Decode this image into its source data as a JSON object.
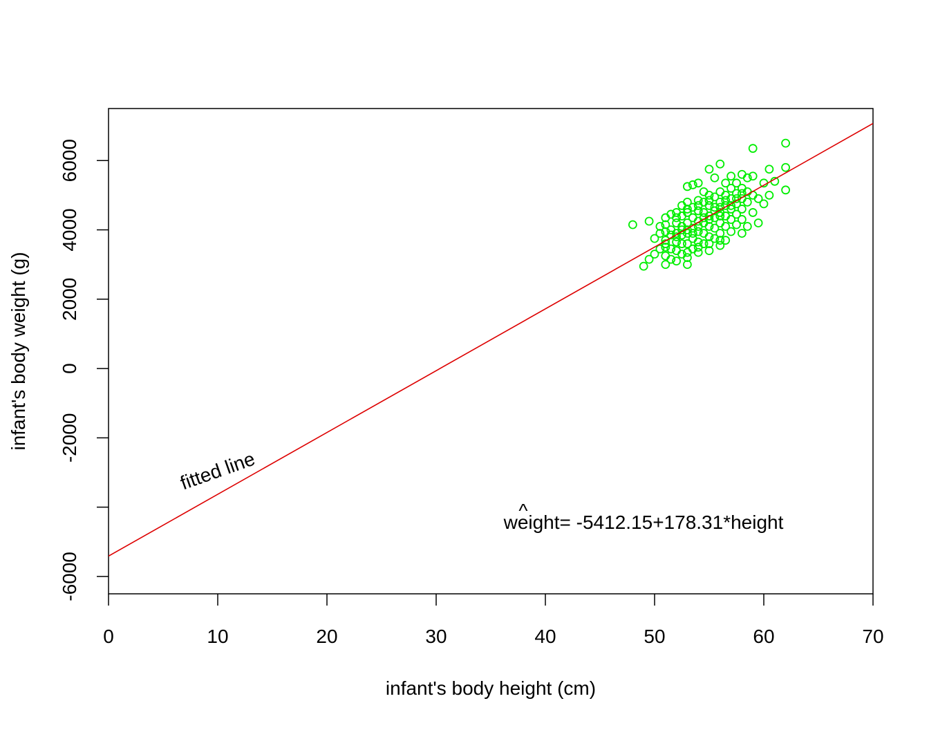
{
  "chart_data": {
    "type": "scatter",
    "title": "",
    "xlabel": "infant's body height (cm)",
    "ylabel": "infant's body weight (g)",
    "xlim": [
      0,
      70
    ],
    "ylim": [
      -6500,
      7500
    ],
    "x_ticks": [
      0,
      10,
      20,
      30,
      40,
      50,
      60,
      70
    ],
    "x_tick_labels": [
      "0",
      "10",
      "20",
      "30",
      "40",
      "50",
      "60",
      "70"
    ],
    "y_ticks": [
      -6000,
      -4000,
      -2000,
      0,
      2000,
      4000,
      6000
    ],
    "y_tick_labels": [
      "-6000",
      "",
      "-2000",
      "0",
      "2000",
      "4000",
      "6000"
    ],
    "grid": false,
    "point_color": "#00ee00",
    "line_color": "#dd0000",
    "fitted_line": {
      "intercept": -5412.15,
      "slope": 178.31
    },
    "annotations": {
      "fitted_line_label": "fitted line",
      "equation_hat": "^",
      "equation": "weight= -5412.15+178.31*height"
    },
    "points": [
      [
        48.0,
        4150
      ],
      [
        49.0,
        2950
      ],
      [
        49.5,
        3150
      ],
      [
        49.5,
        4250
      ],
      [
        50.0,
        3750
      ],
      [
        50.0,
        3300
      ],
      [
        50.5,
        3450
      ],
      [
        50.5,
        3900
      ],
      [
        50.5,
        4100
      ],
      [
        51.0,
        3000
      ],
      [
        51.0,
        3250
      ],
      [
        51.0,
        3500
      ],
      [
        51.0,
        3700
      ],
      [
        51.0,
        3950
      ],
      [
        51.0,
        4150
      ],
      [
        51.0,
        4350
      ],
      [
        51.5,
        3150
      ],
      [
        51.5,
        3450
      ],
      [
        51.5,
        3850
      ],
      [
        51.5,
        4450
      ],
      [
        52.0,
        3100
      ],
      [
        52.0,
        3400
      ],
      [
        52.0,
        3650
      ],
      [
        52.0,
        3900
      ],
      [
        52.0,
        4200
      ],
      [
        52.0,
        4500
      ],
      [
        52.5,
        3300
      ],
      [
        52.5,
        3600
      ],
      [
        52.5,
        3850
      ],
      [
        52.5,
        4100
      ],
      [
        52.5,
        4400
      ],
      [
        52.5,
        4700
      ],
      [
        53.0,
        3000
      ],
      [
        53.0,
        3350
      ],
      [
        53.0,
        3600
      ],
      [
        53.0,
        3900
      ],
      [
        53.0,
        4200
      ],
      [
        53.0,
        4500
      ],
      [
        53.0,
        4800
      ],
      [
        53.0,
        5250
      ],
      [
        53.5,
        3450
      ],
      [
        53.5,
        3750
      ],
      [
        53.5,
        4050
      ],
      [
        53.5,
        4350
      ],
      [
        53.5,
        4650
      ],
      [
        53.5,
        5300
      ],
      [
        54.0,
        3350
      ],
      [
        54.0,
        3650
      ],
      [
        54.0,
        3950
      ],
      [
        54.0,
        4250
      ],
      [
        54.0,
        4550
      ],
      [
        54.0,
        4850
      ],
      [
        54.0,
        5350
      ],
      [
        54.5,
        3600
      ],
      [
        54.5,
        3900
      ],
      [
        54.5,
        4200
      ],
      [
        54.5,
        4500
      ],
      [
        54.5,
        4800
      ],
      [
        54.5,
        5100
      ],
      [
        55.0,
        3400
      ],
      [
        55.0,
        3800
      ],
      [
        55.0,
        4100
      ],
      [
        55.0,
        4400
      ],
      [
        55.0,
        4700
      ],
      [
        55.0,
        5000
      ],
      [
        55.0,
        5750
      ],
      [
        55.5,
        3750
      ],
      [
        55.5,
        4050
      ],
      [
        55.5,
        4350
      ],
      [
        55.5,
        4650
      ],
      [
        55.5,
        4950
      ],
      [
        55.5,
        5500
      ],
      [
        56.0,
        3550
      ],
      [
        56.0,
        3900
      ],
      [
        56.0,
        4200
      ],
      [
        56.0,
        4500
      ],
      [
        56.0,
        4800
      ],
      [
        56.0,
        5100
      ],
      [
        56.0,
        5900
      ],
      [
        56.5,
        3700
      ],
      [
        56.5,
        4100
      ],
      [
        56.5,
        4400
      ],
      [
        56.5,
        4700
      ],
      [
        56.5,
        5000
      ],
      [
        56.5,
        5350
      ],
      [
        57.0,
        3950
      ],
      [
        57.0,
        4300
      ],
      [
        57.0,
        4600
      ],
      [
        57.0,
        4900
      ],
      [
        57.0,
        5200
      ],
      [
        57.0,
        5550
      ],
      [
        57.5,
        4150
      ],
      [
        57.5,
        4450
      ],
      [
        57.5,
        4750
      ],
      [
        57.5,
        5050
      ],
      [
        57.5,
        5350
      ],
      [
        58.0,
        3900
      ],
      [
        58.0,
        4300
      ],
      [
        58.0,
        4600
      ],
      [
        58.0,
        4900
      ],
      [
        58.0,
        5200
      ],
      [
        58.0,
        5600
      ],
      [
        58.5,
        4100
      ],
      [
        58.5,
        4800
      ],
      [
        58.5,
        5100
      ],
      [
        58.5,
        5500
      ],
      [
        59.0,
        4500
      ],
      [
        59.0,
        5000
      ],
      [
        59.0,
        5550
      ],
      [
        59.0,
        6350
      ],
      [
        59.5,
        4200
      ],
      [
        59.5,
        4900
      ],
      [
        60.0,
        4750
      ],
      [
        60.0,
        5350
      ],
      [
        60.5,
        5000
      ],
      [
        60.5,
        5750
      ],
      [
        61.0,
        5400
      ],
      [
        62.0,
        5150
      ],
      [
        62.0,
        5800
      ],
      [
        62.0,
        6500
      ],
      [
        53.0,
        4000
      ],
      [
        54.0,
        4100
      ],
      [
        55.0,
        4300
      ],
      [
        56.0,
        4400
      ],
      [
        57.0,
        4700
      ],
      [
        52.0,
        3800
      ],
      [
        53.5,
        3900
      ],
      [
        54.5,
        4350
      ],
      [
        55.5,
        4550
      ],
      [
        56.5,
        4850
      ],
      [
        51.0,
        3600
      ],
      [
        52.5,
        4000
      ],
      [
        53.0,
        4600
      ],
      [
        54.0,
        4700
      ],
      [
        55.0,
        4850
      ],
      [
        57.5,
        4900
      ],
      [
        58.0,
        5050
      ],
      [
        56.0,
        4650
      ],
      [
        51.5,
        4000
      ],
      [
        52.0,
        4350
      ],
      [
        55.0,
        3600
      ],
      [
        56.0,
        3700
      ],
      [
        54.0,
        3500
      ],
      [
        53.0,
        3200
      ]
    ]
  }
}
